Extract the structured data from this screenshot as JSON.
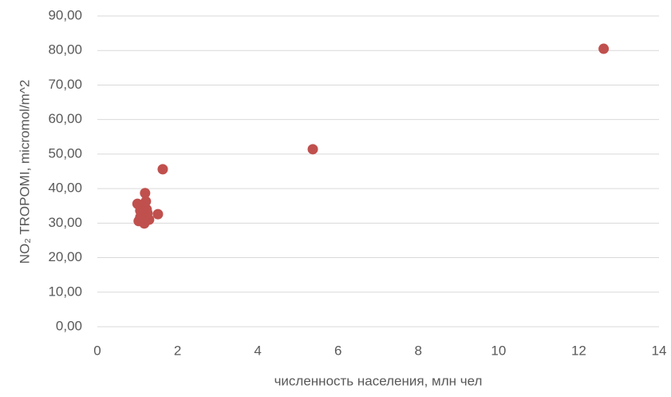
{
  "chart_data": {
    "type": "scatter",
    "x_label": "численность населения, млн чел",
    "y_label": "NO₂ TROPOMI, micromol/m^2",
    "series": [
      {
        "name": "NO2",
        "color": "#c0504d",
        "x": [
          12.62,
          5.37,
          1.63,
          1.19,
          1.21,
          1.03,
          1.0,
          1.07,
          1.25,
          1.51,
          1.29,
          1.11,
          1.03,
          1.17,
          1.07,
          1.23
        ],
        "values": [
          80.5,
          51.4,
          45.6,
          38.7,
          36.3,
          35.4,
          35.6,
          33.6,
          32.9,
          32.6,
          31.0,
          31.0,
          30.6,
          29.9,
          31.7,
          34.0
        ]
      }
    ],
    "xlim": [
      0,
      14
    ],
    "xticks": [
      0,
      2,
      4,
      6,
      8,
      10,
      12,
      14
    ],
    "ylim": [
      0,
      90
    ],
    "yticks": [
      {
        "value": 0,
        "label": "0,00"
      },
      {
        "value": 10,
        "label": "10,00"
      },
      {
        "value": 20,
        "label": "20,00"
      },
      {
        "value": 30,
        "label": "30,00"
      },
      {
        "value": 40,
        "label": "40,00"
      },
      {
        "value": 50,
        "label": "50,00"
      },
      {
        "value": 60,
        "label": "60,00"
      },
      {
        "value": 70,
        "label": "70,00"
      },
      {
        "value": 80,
        "label": "80,00"
      },
      {
        "value": 90,
        "label": "90,00"
      }
    ],
    "grid": true
  }
}
